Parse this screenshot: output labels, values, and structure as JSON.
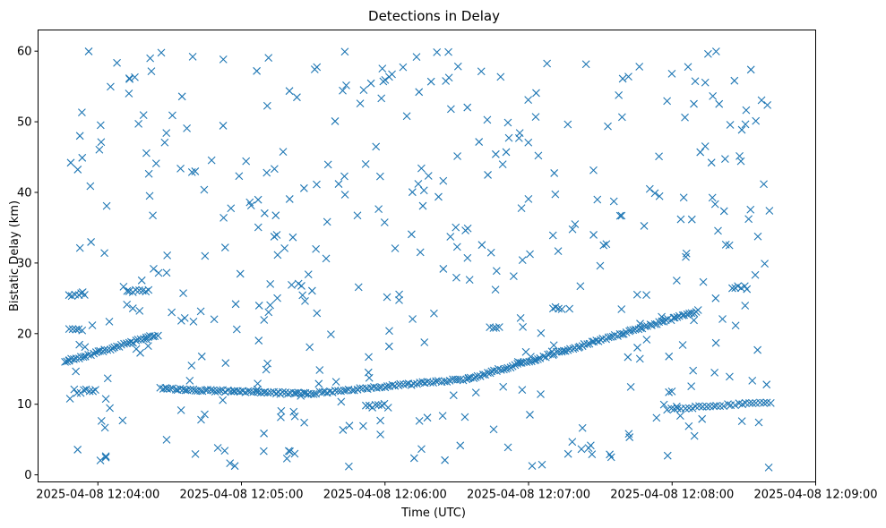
{
  "chart_data": {
    "type": "scatter",
    "title": "Detections in Delay",
    "xlabel": "Time (UTC)",
    "ylabel": "Bistatic Delay (km)",
    "x_ticks": [
      "2025-04-08 12:04:00",
      "2025-04-08 12:05:00",
      "2025-04-08 12:06:00",
      "2025-04-08 12:07:00",
      "2025-04-08 12:08:00",
      "2025-04-08 12:09:00"
    ],
    "y_ticks": [
      0,
      10,
      20,
      30,
      40,
      50,
      60
    ],
    "xlim": [
      "2025-04-08 12:03:35",
      "2025-04-08 12:09:00"
    ],
    "ylim": [
      -1,
      63
    ],
    "marker": "x",
    "color": "#1f77b4",
    "grid": false,
    "series": [
      {
        "values_description": "tracks",
        "tracks": [
          {
            "from": [
              "2025-04-08 12:03:46",
              16.0
            ],
            "to": [
              "2025-04-08 12:04:25",
              19.8
            ],
            "points": 40
          },
          {
            "from": [
              "2025-04-08 12:04:26",
              12.2
            ],
            "to": [
              "2025-04-08 12:05:28",
              11.5
            ],
            "points": 60,
            "dip": 11.4
          },
          {
            "from": [
              "2025-04-08 12:05:28",
              11.5
            ],
            "to": [
              "2025-04-08 12:06:35",
              13.6
            ],
            "points": 60
          },
          {
            "from": [
              "2025-04-08 12:06:35",
              13.6
            ],
            "to": [
              "2025-04-08 12:08:11",
              23.2
            ],
            "points": 100
          },
          {
            "from": [
              "2025-04-08 12:07:58",
              9.3
            ],
            "to": [
              "2025-04-08 12:08:41",
              10.3
            ],
            "points": 30
          }
        ],
        "clusters": [
          {
            "t": "2025-04-08 12:03:48",
            "y": 25.5,
            "points": 6
          },
          {
            "t": "2025-04-08 12:04:12",
            "y": 26.0,
            "points": 8
          },
          {
            "t": "2025-04-08 12:03:48",
            "y": 20.5,
            "points": 5
          },
          {
            "t": "2025-04-08 12:03:50",
            "y": 11.8,
            "points": 8
          },
          {
            "t": "2025-04-08 12:05:52",
            "y": 9.8,
            "points": 8
          },
          {
            "t": "2025-04-08 12:06:44",
            "y": 20.8,
            "points": 4
          },
          {
            "t": "2025-04-08 12:07:10",
            "y": 23.5,
            "points": 4
          },
          {
            "t": "2025-04-08 12:08:25",
            "y": 26.5,
            "points": 6
          }
        ],
        "clutter_points": 420,
        "clutter_range_y": [
          1,
          60
        ]
      }
    ]
  }
}
